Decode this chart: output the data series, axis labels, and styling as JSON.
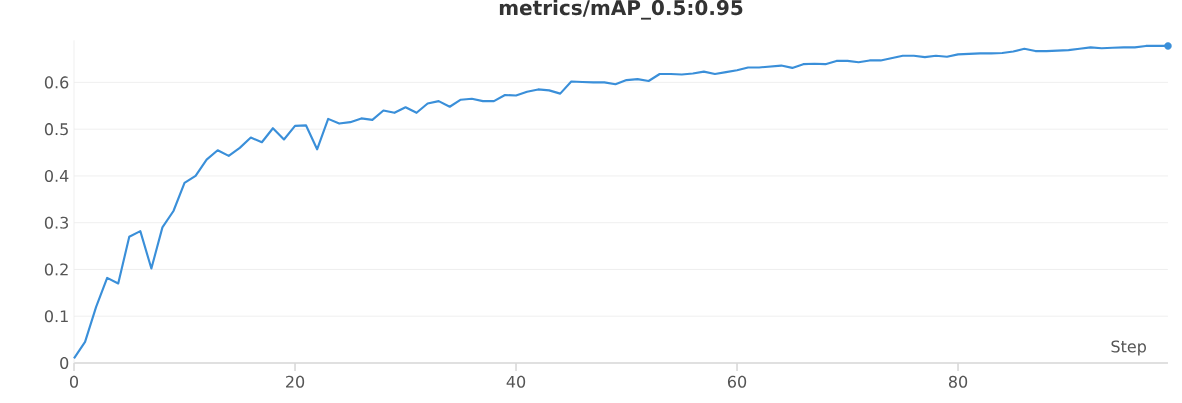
{
  "chart_data": {
    "type": "line",
    "title": "metrics/mAP_0.5:0.95",
    "xlabel": "Step",
    "x": [
      0,
      1,
      2,
      3,
      4,
      5,
      6,
      7,
      8,
      9,
      10,
      11,
      12,
      13,
      14,
      15,
      16,
      17,
      18,
      19,
      20,
      21,
      22,
      23,
      24,
      25,
      26,
      27,
      28,
      29,
      30,
      31,
      32,
      33,
      34,
      35,
      36,
      37,
      38,
      39,
      40,
      41,
      42,
      43,
      44,
      45,
      46,
      47,
      48,
      49,
      50,
      51,
      52,
      53,
      54,
      55,
      56,
      57,
      58,
      59,
      60,
      61,
      62,
      63,
      64,
      65,
      66,
      67,
      68,
      69,
      70,
      71,
      72,
      73,
      74,
      75,
      76,
      77,
      78,
      79,
      80,
      81,
      82,
      83,
      84,
      85,
      86,
      87,
      88,
      89,
      90,
      91,
      92,
      93,
      94,
      95,
      96,
      97,
      98,
      99
    ],
    "series": [
      {
        "color": "#3a8fd9",
        "values": [
          0.01,
          0.045,
          0.12,
          0.182,
          0.17,
          0.27,
          0.282,
          0.202,
          0.29,
          0.325,
          0.385,
          0.4,
          0.435,
          0.455,
          0.443,
          0.46,
          0.482,
          0.472,
          0.502,
          0.478,
          0.507,
          0.508,
          0.457,
          0.522,
          0.512,
          0.515,
          0.523,
          0.52,
          0.54,
          0.535,
          0.547,
          0.535,
          0.555,
          0.56,
          0.548,
          0.563,
          0.565,
          0.56,
          0.56,
          0.573,
          0.572,
          0.58,
          0.585,
          0.583,
          0.576,
          0.602,
          0.601,
          0.6,
          0.6,
          0.596,
          0.605,
          0.607,
          0.603,
          0.618,
          0.618,
          0.617,
          0.619,
          0.623,
          0.618,
          0.622,
          0.626,
          0.632,
          0.632,
          0.634,
          0.636,
          0.631,
          0.639,
          0.64,
          0.639,
          0.646,
          0.646,
          0.643,
          0.647,
          0.647,
          0.652,
          0.657,
          0.657,
          0.654,
          0.657,
          0.655,
          0.66,
          0.661,
          0.662,
          0.662,
          0.663,
          0.666,
          0.672,
          0.667,
          0.667,
          0.668,
          0.669,
          0.672,
          0.675,
          0.673,
          0.674,
          0.675,
          0.675,
          0.678,
          0.678,
          0.678
        ]
      }
    ],
    "xlim": [
      0,
      99
    ],
    "ylim": [
      0,
      0.69
    ],
    "xticks": [
      0,
      20,
      40,
      60,
      80
    ],
    "yticks": [
      0,
      0.1,
      0.2,
      0.3,
      0.4,
      0.5,
      0.6
    ],
    "grid": "y",
    "marker": "none",
    "line_style": "solid"
  }
}
